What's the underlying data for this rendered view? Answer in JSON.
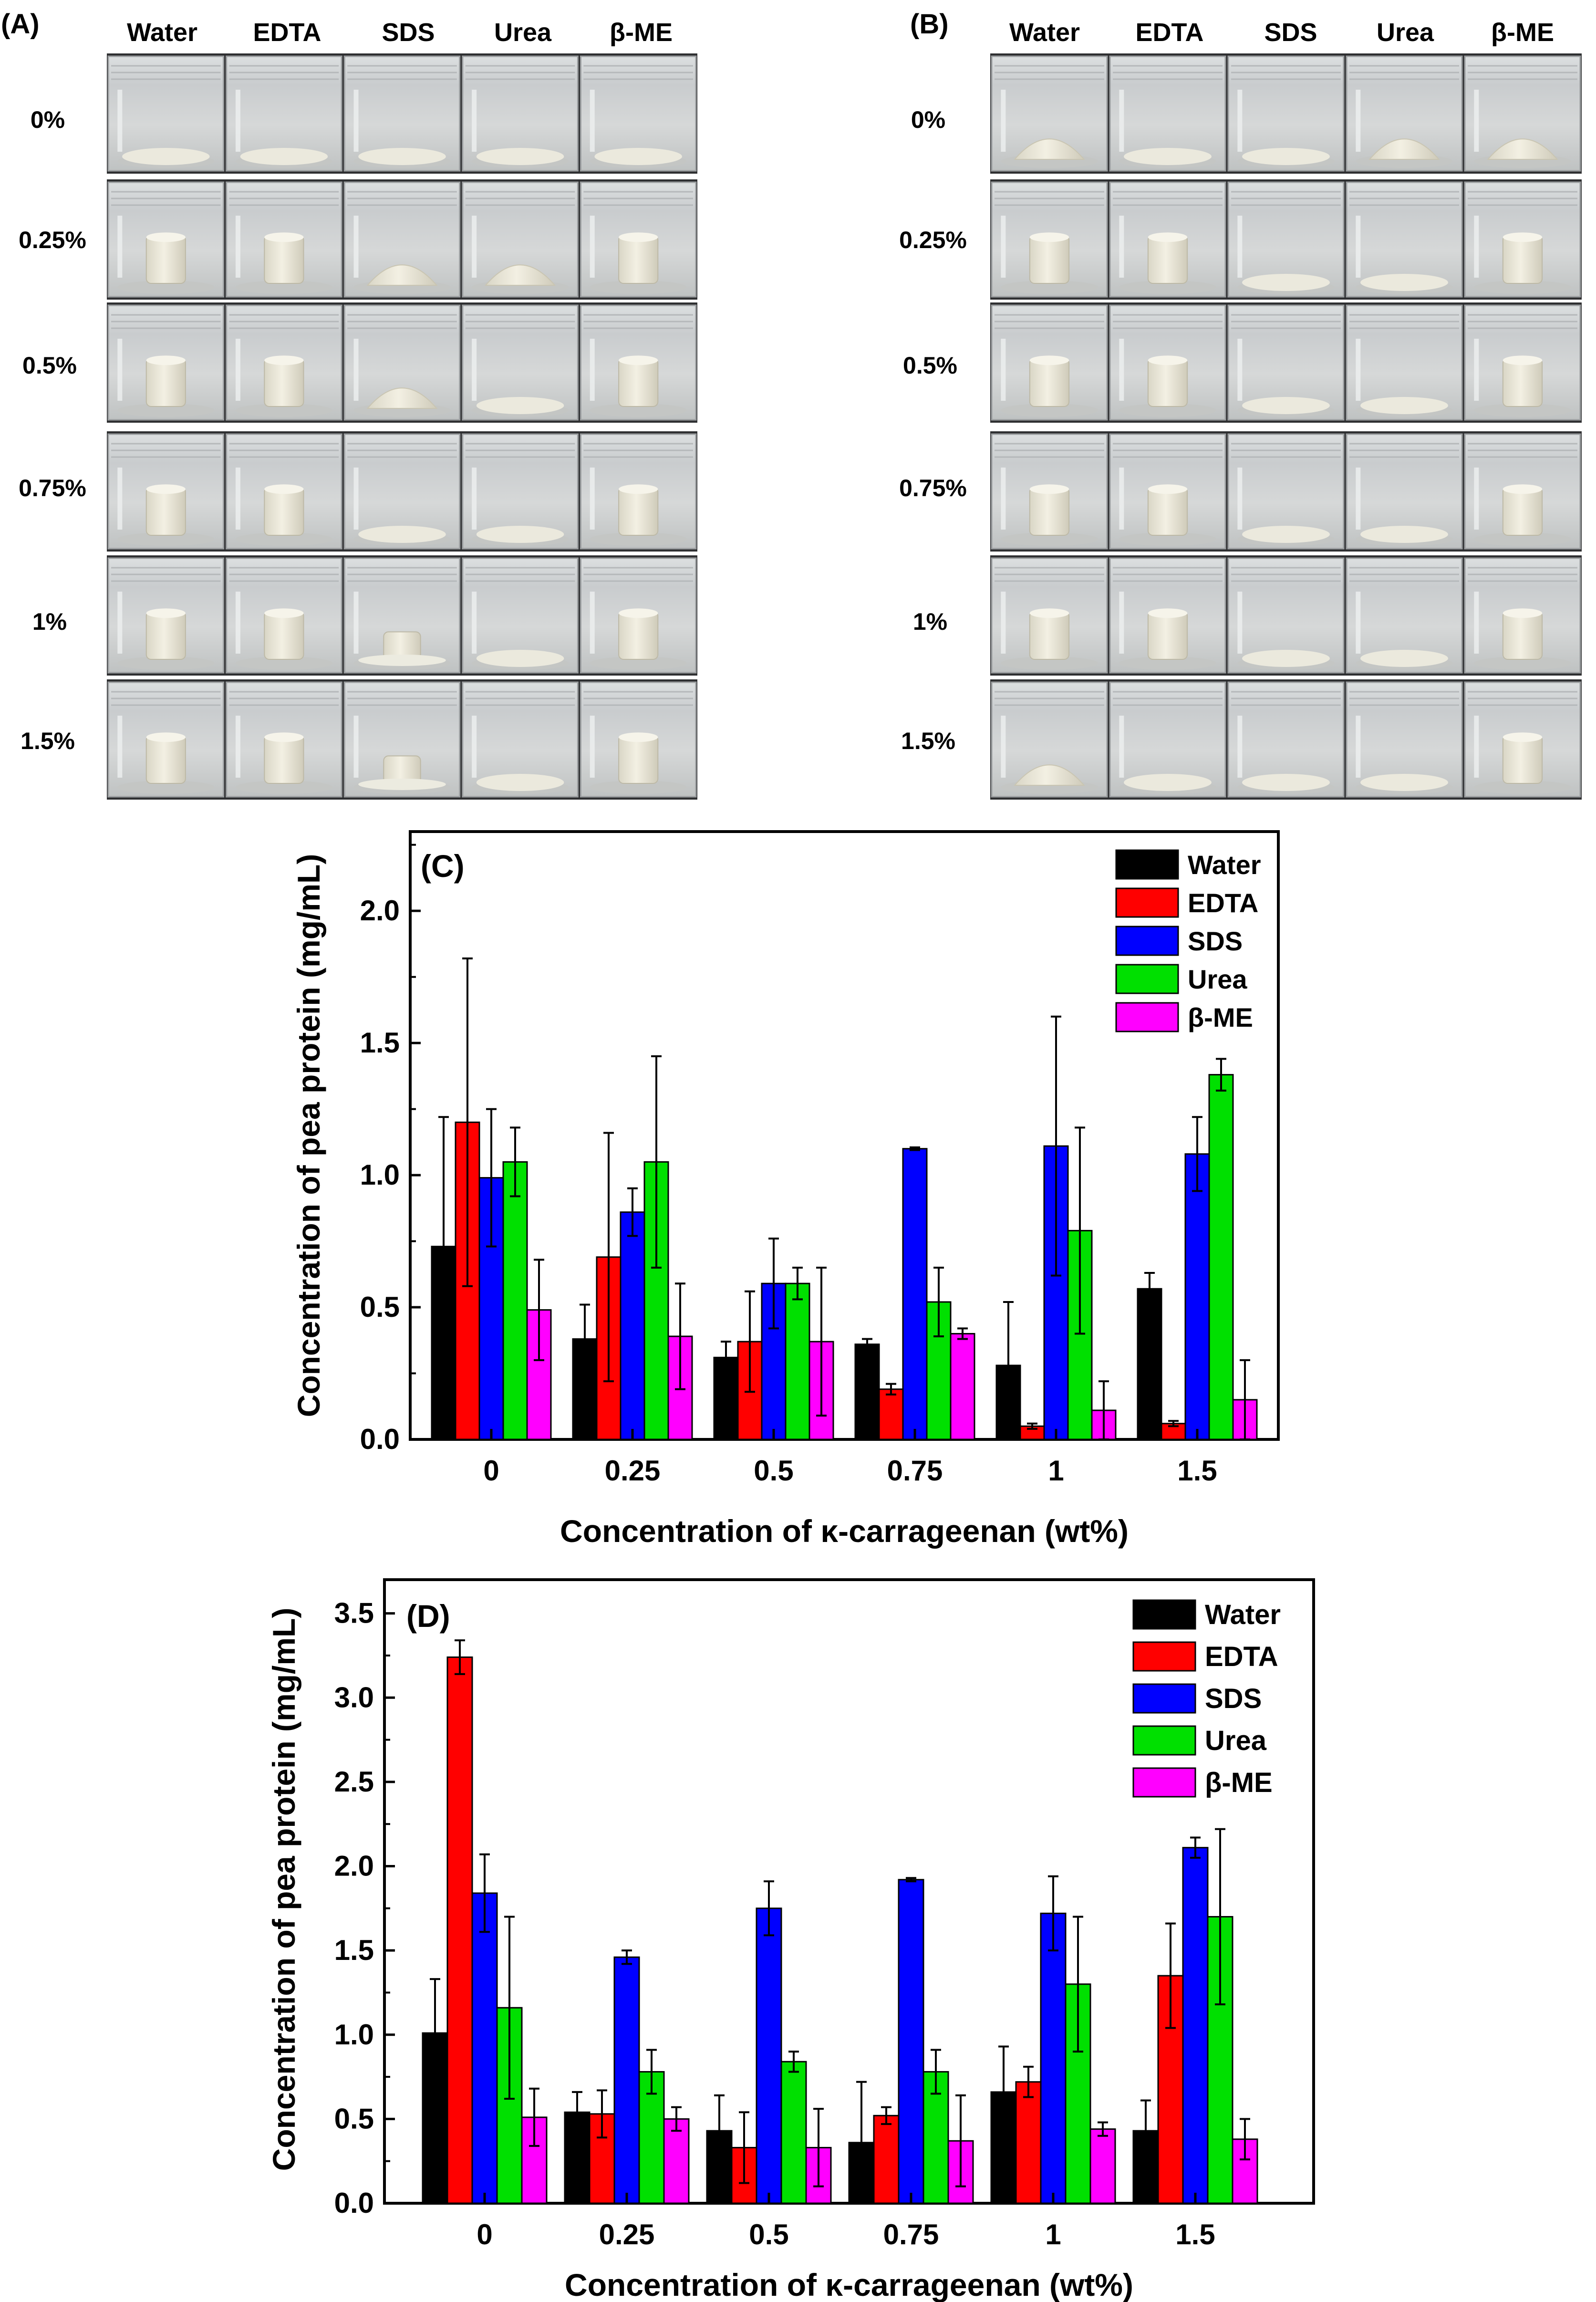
{
  "panel_a": {
    "label": "(A)",
    "columns": [
      "Water",
      "EDTA",
      "SDS",
      "Urea",
      "β-ME"
    ],
    "rows": [
      "0%",
      "0.25%",
      "0.5%",
      "0.75%",
      "1%",
      "1.5%"
    ],
    "states": [
      [
        "flat",
        "flat",
        "flat",
        "flat",
        "flat"
      ],
      [
        "cyl",
        "cyl",
        "mound",
        "mound",
        "cyl"
      ],
      [
        "cyl",
        "cyl",
        "mound",
        "flat",
        "cyl"
      ],
      [
        "cyl",
        "cyl",
        "flat",
        "flat",
        "cyl"
      ],
      [
        "cyl",
        "cyl",
        "short",
        "flat",
        "cyl"
      ],
      [
        "cyl",
        "cyl",
        "short",
        "flat",
        "cyl"
      ]
    ]
  },
  "panel_b": {
    "label": "(B)",
    "columns": [
      "Water",
      "EDTA",
      "SDS",
      "Urea",
      "β-ME"
    ],
    "rows": [
      "0%",
      "0.25%",
      "0.5%",
      "0.75%",
      "1%",
      "1.5%"
    ],
    "states": [
      [
        "mound",
        "flat",
        "flat",
        "mound",
        "mound"
      ],
      [
        "cyl",
        "cyl",
        "flat",
        "flat",
        "cyl"
      ],
      [
        "cyl",
        "cyl",
        "flat",
        "flat",
        "cyl"
      ],
      [
        "cyl",
        "cyl",
        "flat",
        "flat",
        "cyl"
      ],
      [
        "cyl",
        "cyl",
        "flat",
        "flat",
        "cyl"
      ],
      [
        "mound",
        "flat",
        "flat",
        "flat",
        "cyl"
      ]
    ]
  },
  "colors": {
    "Water": "#000000",
    "EDTA": "#ff0000",
    "SDS": "#0000ff",
    "Urea": "#00e000",
    "β-ME": "#ff00ff"
  },
  "chart_data": [
    {
      "panel": "(C)",
      "type": "bar",
      "categories": [
        "0",
        "0.25",
        "0.5",
        "0.75",
        "1",
        "1.5"
      ],
      "xlabel": "Concentration of κ-carrageenan (wt%)",
      "ylabel": "Concentration of pea protein (mg/mL)",
      "ylim": [
        0,
        2.3
      ],
      "yticks": [
        "0.0",
        "0.5",
        "1.0",
        "1.5",
        "2.0"
      ],
      "ytick_values": [
        0,
        0.5,
        1.0,
        1.5,
        2.0
      ],
      "legend": "top-right",
      "series": [
        {
          "name": "Water",
          "values": [
            0.73,
            0.38,
            0.31,
            0.36,
            0.28,
            0.57
          ],
          "errors": [
            0.49,
            0.13,
            0.06,
            0.02,
            0.24,
            0.06
          ]
        },
        {
          "name": "EDTA",
          "values": [
            1.2,
            0.69,
            0.37,
            0.19,
            0.05,
            0.06
          ],
          "errors": [
            0.62,
            0.47,
            0.19,
            0.02,
            0.01,
            0.01
          ]
        },
        {
          "name": "SDS",
          "values": [
            0.99,
            0.86,
            0.59,
            1.1,
            1.11,
            1.08
          ],
          "errors": [
            0.26,
            0.09,
            0.17,
            0.005,
            0.49,
            0.14
          ]
        },
        {
          "name": "Urea",
          "values": [
            1.05,
            1.05,
            0.59,
            0.52,
            0.79,
            1.38
          ],
          "errors": [
            0.13,
            0.4,
            0.06,
            0.13,
            0.39,
            0.06
          ]
        },
        {
          "name": "β-ME",
          "values": [
            0.49,
            0.39,
            0.37,
            0.4,
            0.11,
            0.15
          ],
          "errors": [
            0.19,
            0.2,
            0.28,
            0.02,
            0.11,
            0.15
          ]
        }
      ]
    },
    {
      "panel": "(D)",
      "type": "bar",
      "categories": [
        "0",
        "0.25",
        "0.5",
        "0.75",
        "1",
        "1.5"
      ],
      "xlabel": "Concentration of κ-carrageenan (wt%)",
      "ylabel": "Concentration of pea protein (mg/mL)",
      "ylim": [
        0,
        3.7
      ],
      "yticks": [
        "0.0",
        "0.5",
        "1.0",
        "1.5",
        "2.0",
        "2.5",
        "3.0",
        "3.5"
      ],
      "ytick_values": [
        0,
        0.5,
        1.0,
        1.5,
        2.0,
        2.5,
        3.0,
        3.5
      ],
      "legend": "top-right",
      "series": [
        {
          "name": "Water",
          "values": [
            1.01,
            0.54,
            0.43,
            0.36,
            0.66,
            0.43
          ],
          "errors": [
            0.32,
            0.12,
            0.21,
            0.36,
            0.27,
            0.18
          ]
        },
        {
          "name": "EDTA",
          "values": [
            3.24,
            0.53,
            0.33,
            0.52,
            0.72,
            1.35
          ],
          "errors": [
            0.1,
            0.14,
            0.21,
            0.05,
            0.09,
            0.31
          ]
        },
        {
          "name": "SDS",
          "values": [
            1.84,
            1.46,
            1.75,
            1.92,
            1.72,
            2.11
          ],
          "errors": [
            0.23,
            0.04,
            0.16,
            0.01,
            0.22,
            0.06
          ]
        },
        {
          "name": "Urea",
          "values": [
            1.16,
            0.78,
            0.84,
            0.78,
            1.3,
            1.7
          ],
          "errors": [
            0.54,
            0.13,
            0.06,
            0.13,
            0.4,
            0.52
          ]
        },
        {
          "name": "β-ME",
          "values": [
            0.51,
            0.5,
            0.33,
            0.37,
            0.44,
            0.38
          ],
          "errors": [
            0.17,
            0.07,
            0.23,
            0.27,
            0.04,
            0.12
          ]
        }
      ]
    }
  ]
}
